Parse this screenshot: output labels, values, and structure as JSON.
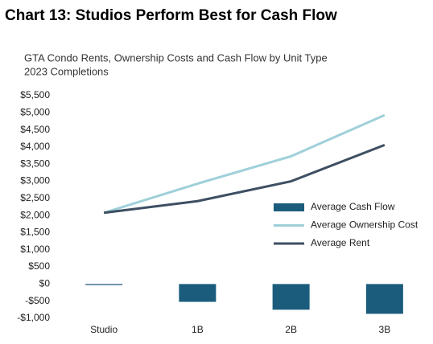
{
  "chart_data": {
    "type": "bar",
    "title": "Chart 13: Studios Perform Best for Cash Flow",
    "subtitle": [
      "GTA Condo Rents, Ownership Costs and Cash Flow by Unit Type",
      "2023 Completions"
    ],
    "categories": [
      "Studio",
      "1B",
      "2B",
      "3B"
    ],
    "series": [
      {
        "name": "Average Cash Flow",
        "type": "bar",
        "color": "#1b5c7c",
        "values": [
          -30,
          -520,
          -750,
          -870
        ]
      },
      {
        "name": "Average Ownership Cost",
        "type": "line",
        "color": "#9fd0da",
        "values": [
          2080,
          2930,
          3730,
          4930
        ]
      },
      {
        "name": "Average Rent",
        "type": "line",
        "color": "#3e4f63",
        "values": [
          2080,
          2420,
          3000,
          4060
        ]
      }
    ],
    "ylim": [
      -1000,
      5500
    ],
    "yticks": [
      {
        "value": -1000,
        "label": "-$1,000"
      },
      {
        "value": -500,
        "label": "-$500"
      },
      {
        "value": 0,
        "label": "$0"
      },
      {
        "value": 500,
        "label": "$500"
      },
      {
        "value": 1000,
        "label": "$1,000"
      },
      {
        "value": 1500,
        "label": "$1,500"
      },
      {
        "value": 2000,
        "label": "$2,000"
      },
      {
        "value": 2500,
        "label": "$2,500"
      },
      {
        "value": 3000,
        "label": "$3,000"
      },
      {
        "value": 3500,
        "label": "$3,500"
      },
      {
        "value": 4000,
        "label": "$4,000"
      },
      {
        "value": 4500,
        "label": "$4,500"
      },
      {
        "value": 5000,
        "label": "$5,000"
      },
      {
        "value": 5500,
        "label": "$5,500"
      }
    ],
    "grid": false,
    "legend": "right"
  }
}
